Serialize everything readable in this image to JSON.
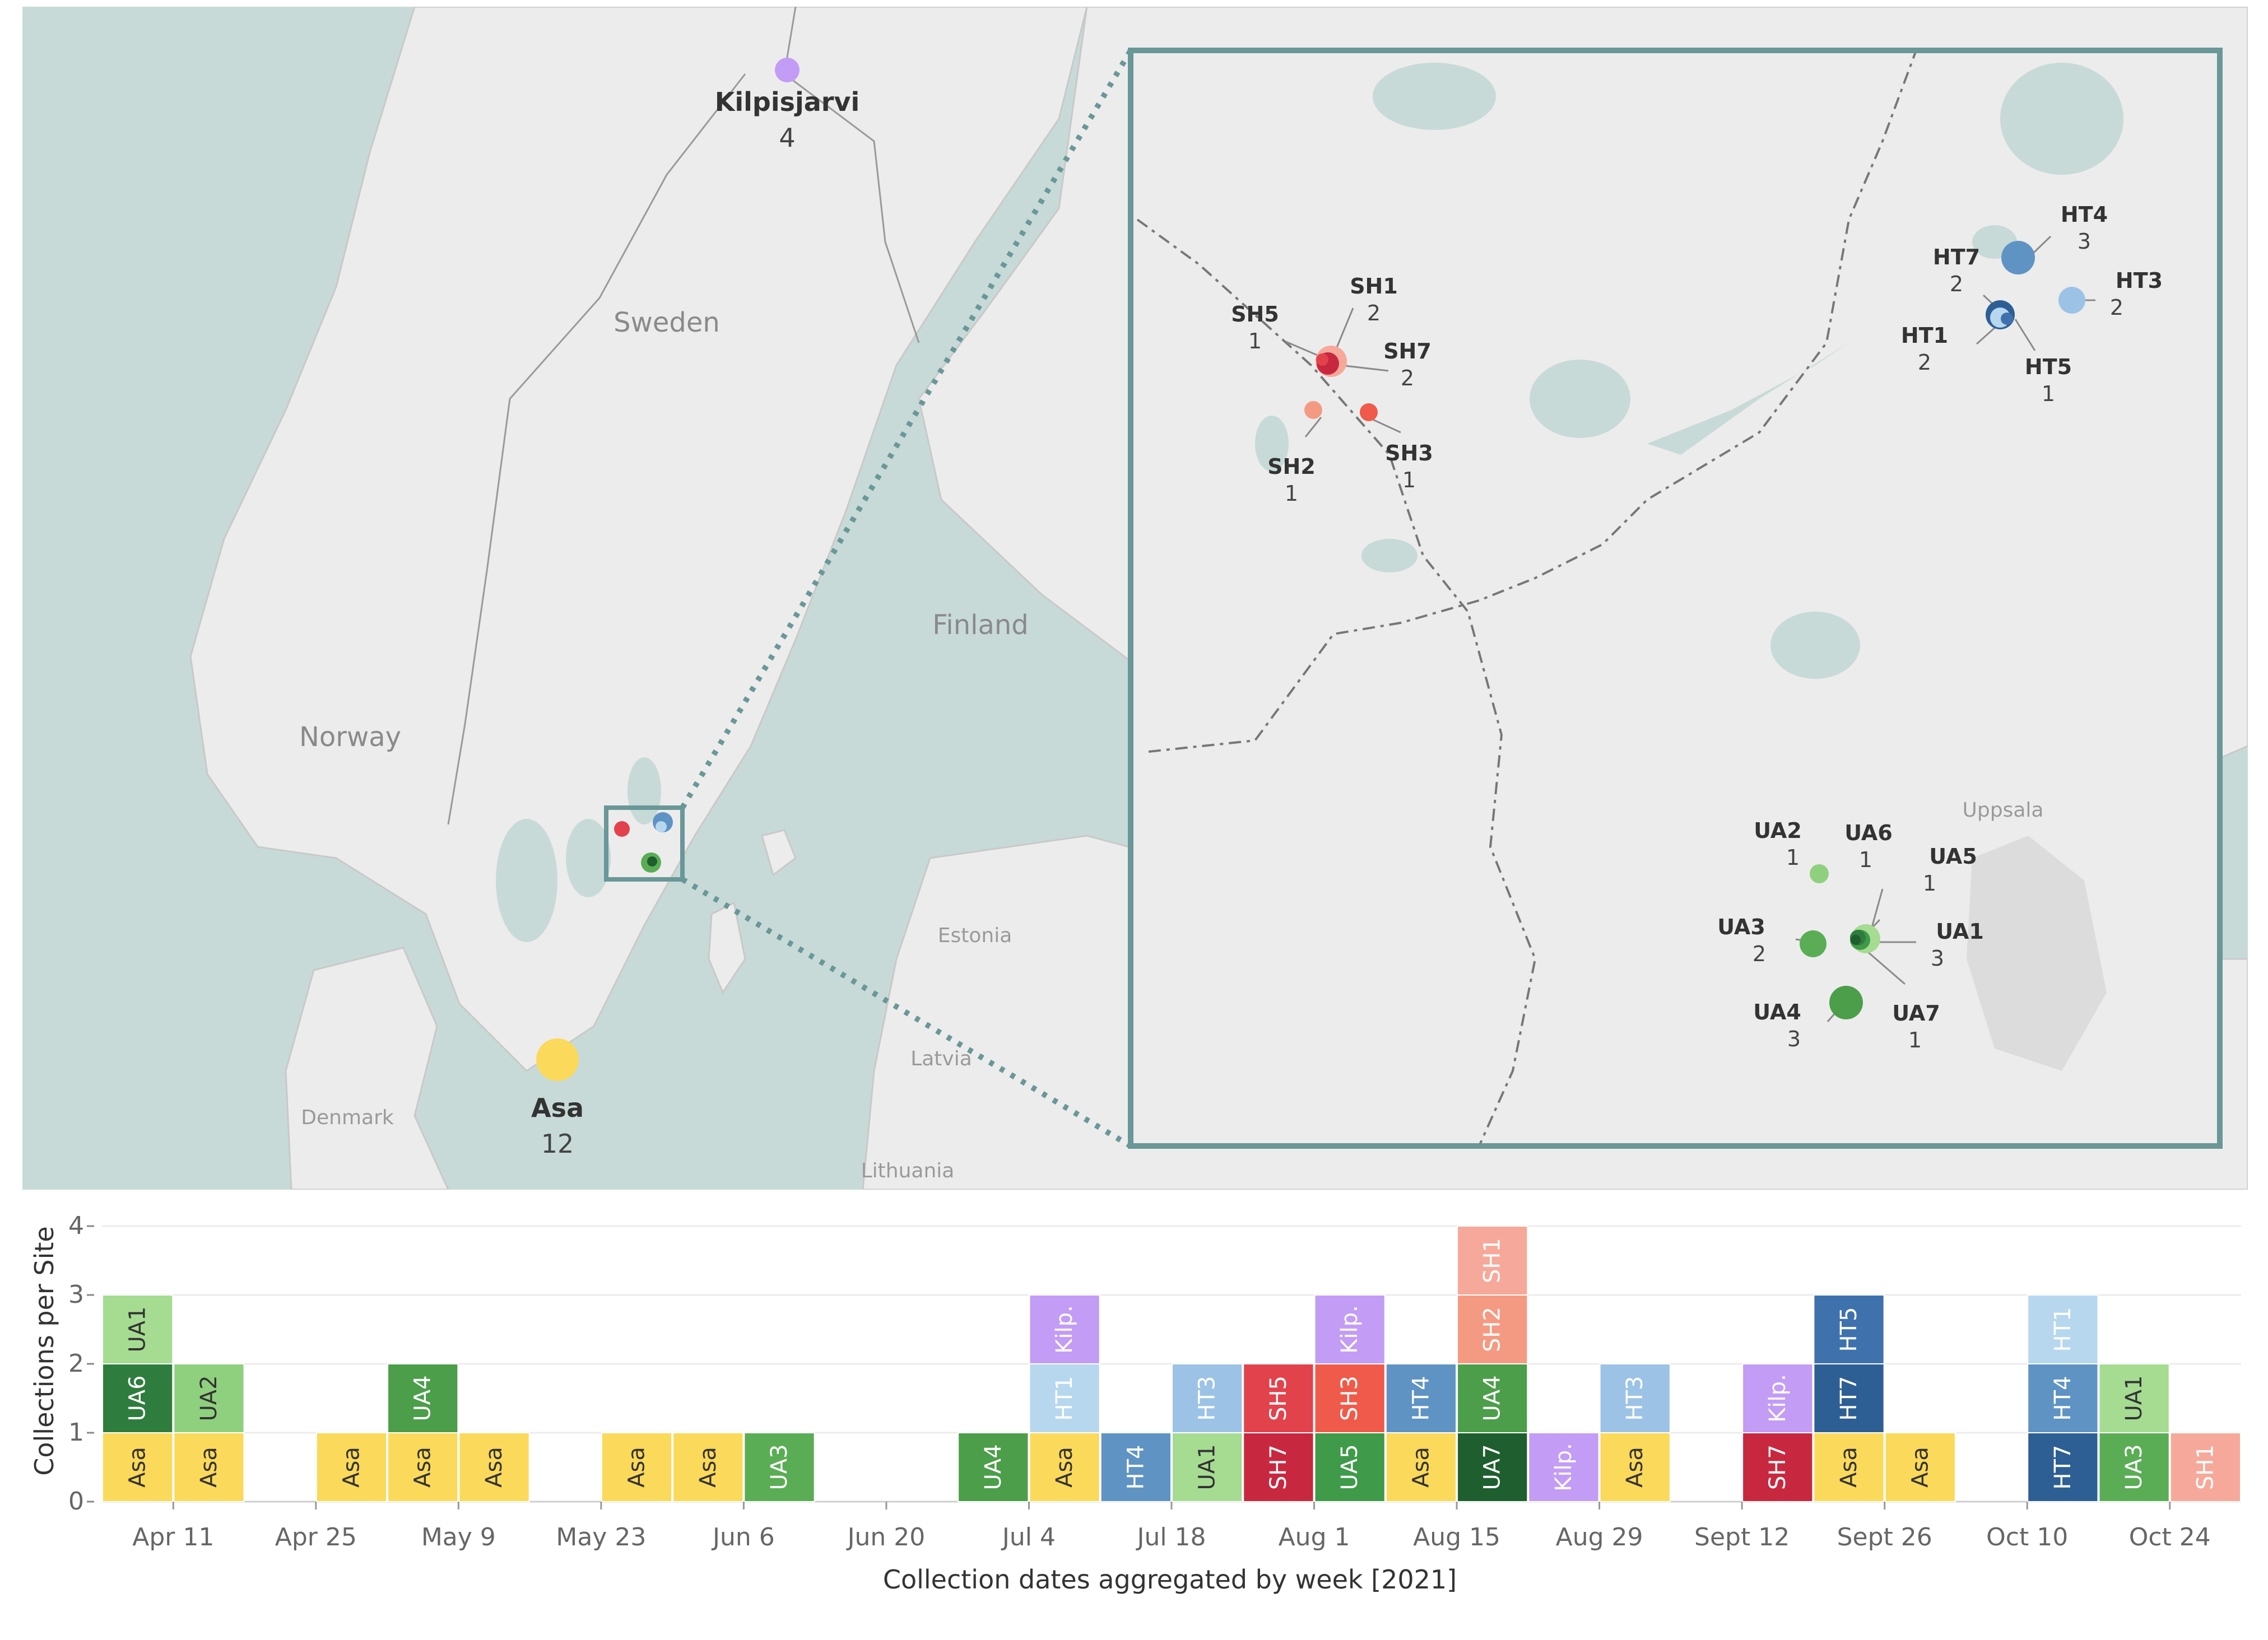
{
  "map": {
    "countries": [
      "Sweden",
      "Norway",
      "Finland",
      "Denmark",
      "Estonia",
      "Latvia",
      "Lithuania"
    ],
    "city": "Uppsala",
    "main_sites": [
      {
        "name": "Kilpisjarvi",
        "count": "4",
        "color": "#c39cf5"
      },
      {
        "name": "Asa",
        "count": "12",
        "color": "#fbd95a"
      }
    ],
    "inset_sites": [
      {
        "name": "SH1",
        "count": "2",
        "color": "#f6a99a"
      },
      {
        "name": "SH5",
        "count": "1",
        "color": "#e2424c"
      },
      {
        "name": "SH7",
        "count": "2",
        "color": "#c8283f"
      },
      {
        "name": "SH2",
        "count": "1",
        "color": "#f59a82"
      },
      {
        "name": "SH3",
        "count": "1",
        "color": "#f05a4a"
      },
      {
        "name": "HT4",
        "count": "3",
        "color": "#5f93c4"
      },
      {
        "name": "HT7",
        "count": "2",
        "color": "#2e5f94"
      },
      {
        "name": "HT3",
        "count": "2",
        "color": "#9cc3e6"
      },
      {
        "name": "HT1",
        "count": "2",
        "color": "#b7d7ef"
      },
      {
        "name": "HT5",
        "count": "1",
        "color": "#3f72ad"
      },
      {
        "name": "UA2",
        "count": "1",
        "color": "#8fd07f"
      },
      {
        "name": "UA6",
        "count": "1",
        "color": "#2f7d3e"
      },
      {
        "name": "UA5",
        "count": "1",
        "color": "#3f9a49"
      },
      {
        "name": "UA3",
        "count": "2",
        "color": "#5aad55"
      },
      {
        "name": "UA1",
        "count": "3",
        "color": "#a5dc92"
      },
      {
        "name": "UA4",
        "count": "3",
        "color": "#4c9e4a"
      },
      {
        "name": "UA7",
        "count": "1",
        "color": "#1f5e2f"
      }
    ]
  },
  "chart_data": {
    "type": "bar",
    "stacked": true,
    "title": "",
    "xlabel": "Collection dates aggregated by week [2021]",
    "ylabel": "Collections per Site",
    "ylim": [
      0,
      4
    ],
    "yticks": [
      "0",
      "1",
      "2",
      "3",
      "4"
    ],
    "xtick_labels": [
      "Apr 11",
      "Apr 25",
      "May 9",
      "May 23",
      "Jun 6",
      "Jun 20",
      "Jul 4",
      "Jul 18",
      "Aug 1",
      "Aug 15",
      "Aug 29",
      "Sept 12",
      "Sept 26",
      "Oct 10",
      "Oct 24"
    ],
    "weeks": [
      {
        "week": "Apr 11",
        "stack": [
          "Asa",
          "UA6",
          "UA1"
        ]
      },
      {
        "week": "Apr 18",
        "stack": [
          "Asa",
          "UA2"
        ]
      },
      {
        "week": "Apr 25",
        "stack": []
      },
      {
        "week": "May 2",
        "stack": [
          "Asa"
        ]
      },
      {
        "week": "May 9",
        "stack": [
          "Asa",
          "UA4"
        ]
      },
      {
        "week": "May 16",
        "stack": [
          "Asa"
        ]
      },
      {
        "week": "May 23",
        "stack": []
      },
      {
        "week": "May 30",
        "stack": [
          "Asa"
        ]
      },
      {
        "week": "Jun 6",
        "stack": [
          "Asa"
        ]
      },
      {
        "week": "Jun 13",
        "stack": [
          "UA3"
        ]
      },
      {
        "week": "Jun 20",
        "stack": []
      },
      {
        "week": "Jun 27",
        "stack": []
      },
      {
        "week": "Jul 4",
        "stack": [
          "UA4"
        ]
      },
      {
        "week": "Jul 11",
        "stack": [
          "Asa",
          "HT1",
          "Kilp."
        ]
      },
      {
        "week": "Jul 18",
        "stack": [
          "HT4"
        ]
      },
      {
        "week": "Jul 25",
        "stack": [
          "UA1",
          "HT3"
        ]
      },
      {
        "week": "Aug 1",
        "stack": [
          "SH7",
          "SH5"
        ]
      },
      {
        "week": "Aug 8",
        "stack": [
          "UA5",
          "SH3",
          "Kilp."
        ]
      },
      {
        "week": "Aug 15",
        "stack": [
          "Asa",
          "HT4"
        ]
      },
      {
        "week": "Aug 22",
        "stack": [
          "UA7",
          "UA4",
          "SH2",
          "SH1"
        ]
      },
      {
        "week": "Aug 29",
        "stack": [
          "Kilp."
        ]
      },
      {
        "week": "Sept 5",
        "stack": [
          "Asa",
          "HT3"
        ]
      },
      {
        "week": "Sept 12",
        "stack": []
      },
      {
        "week": "Sept 19",
        "stack": [
          "SH7",
          "Kilp."
        ]
      },
      {
        "week": "Sept 26",
        "stack": [
          "Asa",
          "HT7",
          "HT5"
        ]
      },
      {
        "week": "Oct 3",
        "stack": [
          "Asa"
        ]
      },
      {
        "week": "Oct 10",
        "stack": []
      },
      {
        "week": "Oct 17",
        "stack": [
          "HT7",
          "HT4",
          "HT1"
        ]
      },
      {
        "week": "Oct 24",
        "stack": [
          "UA3",
          "UA1"
        ]
      },
      {
        "week": "Oct 31",
        "stack": [
          "SH1"
        ]
      }
    ],
    "colors": {
      "Asa": "#fbd95a",
      "Kilp.": "#c39cf5",
      "UA1": "#a5dc92",
      "UA2": "#8fd07f",
      "UA3": "#5aad55",
      "UA4": "#4c9e4a",
      "UA5": "#3f9a49",
      "UA6": "#2f7d3e",
      "UA7": "#1f5e2f",
      "HT1": "#b7d7ef",
      "HT3": "#9cc3e6",
      "HT4": "#5f93c4",
      "HT5": "#3f72ad",
      "HT7": "#2e5f94",
      "SH1": "#f6a99a",
      "SH2": "#f59a82",
      "SH3": "#f05a4a",
      "SH5": "#e2424c",
      "SH7": "#c8283f"
    },
    "dark_text_sites": [
      "Asa",
      "UA1",
      "UA2"
    ]
  }
}
